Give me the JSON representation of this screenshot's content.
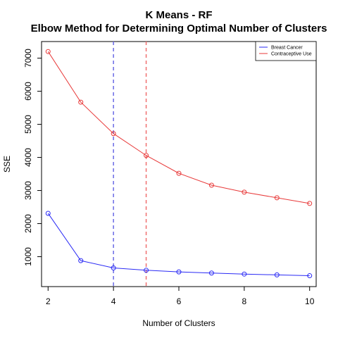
{
  "chart_data": {
    "type": "line",
    "title": "K Means - RF",
    "subtitle": "Elbow Method for Determining Optimal Number of Clusters",
    "xlabel": "Number of Clusters",
    "ylabel": "SSE",
    "x": [
      2,
      3,
      4,
      5,
      6,
      7,
      8,
      9,
      10
    ],
    "xlim": [
      1.8,
      10.2
    ],
    "ylim": [
      96,
      7502
    ],
    "xticks": [
      2,
      4,
      6,
      8,
      10
    ],
    "yticks": [
      1000,
      2000,
      3000,
      4000,
      5000,
      6000,
      7000
    ],
    "grid": false,
    "legend_position": "top-right",
    "series": [
      {
        "name": "Breast Cancer",
        "color": "#2a2af5",
        "values": [
          2310,
          880,
          660,
          590,
          540,
          505,
          475,
          450,
          425
        ]
      },
      {
        "name": "Contraceptive Use",
        "color": "#e83a3a",
        "values": [
          7200,
          5670,
          4720,
          4060,
          3520,
          3160,
          2950,
          2780,
          2610
        ]
      }
    ],
    "vlines": [
      {
        "x": 4,
        "color": "#6a6ae6",
        "style": "dashed"
      },
      {
        "x": 5,
        "color": "#f07070",
        "style": "dashed"
      }
    ]
  }
}
